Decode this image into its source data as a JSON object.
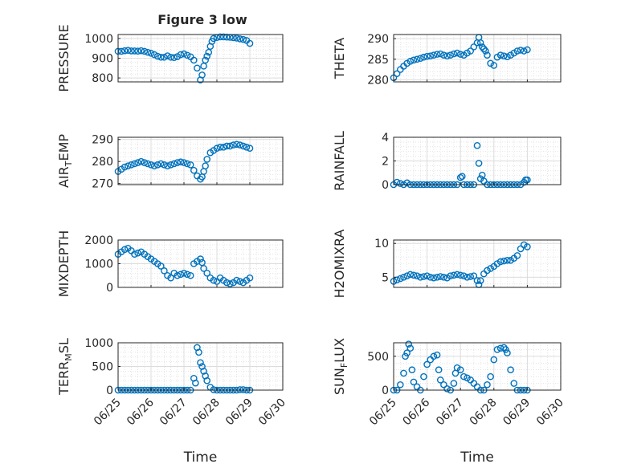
{
  "figure": {
    "title": "Figure 3 low",
    "marker_color": "#0072BD",
    "axis_color": "#262626",
    "x_ticks": [
      "06/25",
      "06/26",
      "06/27",
      "06/28",
      "06/29",
      "06/30"
    ],
    "x_label": "Time"
  },
  "chart_data": [
    {
      "id": "pressure",
      "type": "scatter",
      "ylabel": "PRESSURE",
      "ylabel_sub": "",
      "xlim": [
        0,
        5
      ],
      "ylim": [
        780,
        1020
      ],
      "yticks": [
        800,
        900,
        1000
      ],
      "grid": true,
      "x": [
        0.0,
        0.1,
        0.2,
        0.3,
        0.4,
        0.5,
        0.6,
        0.7,
        0.8,
        0.9,
        1.0,
        1.1,
        1.2,
        1.3,
        1.4,
        1.5,
        1.6,
        1.7,
        1.8,
        1.9,
        2.0,
        2.1,
        2.2,
        2.3,
        2.4,
        2.5,
        2.55,
        2.6,
        2.65,
        2.7,
        2.75,
        2.8,
        2.85,
        2.9,
        3.0,
        3.1,
        3.2,
        3.3,
        3.4,
        3.5,
        3.6,
        3.7,
        3.8,
        3.9,
        4.0
      ],
      "y": [
        935,
        935,
        938,
        940,
        937,
        937,
        936,
        938,
        935,
        930,
        925,
        918,
        910,
        905,
        905,
        912,
        905,
        903,
        908,
        918,
        922,
        915,
        907,
        890,
        850,
        790,
        815,
        860,
        890,
        910,
        930,
        960,
        985,
        1000,
        1005,
        1008,
        1008,
        1007,
        1006,
        1004,
        1002,
        998,
        995,
        990,
        975
      ]
    },
    {
      "id": "theta",
      "type": "scatter",
      "ylabel": "THETA",
      "ylabel_sub": "",
      "xlim": [
        0,
        5
      ],
      "ylim": [
        279.5,
        291
      ],
      "yticks": [
        280,
        285,
        290
      ],
      "grid": true,
      "x": [
        0.0,
        0.1,
        0.2,
        0.3,
        0.4,
        0.5,
        0.6,
        0.7,
        0.8,
        0.9,
        1.0,
        1.1,
        1.2,
        1.3,
        1.4,
        1.5,
        1.6,
        1.7,
        1.8,
        1.9,
        2.0,
        2.1,
        2.2,
        2.3,
        2.4,
        2.5,
        2.55,
        2.6,
        2.65,
        2.7,
        2.75,
        2.8,
        2.9,
        3.0,
        3.1,
        3.2,
        3.3,
        3.4,
        3.5,
        3.6,
        3.7,
        3.8,
        3.9,
        4.0
      ],
      "y": [
        280.5,
        281.5,
        282.5,
        283.3,
        284.0,
        284.5,
        284.8,
        285.0,
        285.2,
        285.5,
        285.7,
        285.8,
        286.0,
        286.2,
        286.3,
        286.0,
        285.8,
        286.0,
        286.3,
        286.5,
        286.2,
        286.0,
        286.5,
        287.0,
        288.0,
        289.0,
        290.3,
        289.0,
        288.0,
        287.5,
        287.0,
        286.0,
        284.0,
        283.5,
        285.5,
        286.0,
        285.8,
        285.6,
        286.0,
        286.5,
        287.0,
        287.2,
        287.0,
        287.3
      ]
    },
    {
      "id": "air-temp",
      "type": "scatter",
      "ylabel": "AIR",
      "ylabel_sub": "T",
      "ylabel_suffix": "EMP",
      "xlim": [
        0,
        5
      ],
      "ylim": [
        269.5,
        291
      ],
      "yticks": [
        270,
        280,
        290
      ],
      "grid": true,
      "x": [
        0.0,
        0.1,
        0.2,
        0.3,
        0.4,
        0.5,
        0.6,
        0.7,
        0.8,
        0.9,
        1.0,
        1.1,
        1.2,
        1.3,
        1.4,
        1.5,
        1.6,
        1.7,
        1.8,
        1.9,
        2.0,
        2.1,
        2.2,
        2.3,
        2.4,
        2.5,
        2.55,
        2.6,
        2.65,
        2.7,
        2.8,
        2.9,
        3.0,
        3.1,
        3.2,
        3.3,
        3.4,
        3.5,
        3.6,
        3.7,
        3.8,
        3.9,
        4.0
      ],
      "y": [
        275.5,
        276.5,
        277.5,
        278.0,
        278.5,
        279.0,
        279.5,
        280.0,
        279.5,
        279.0,
        278.5,
        278.0,
        278.5,
        279.0,
        278.5,
        278.0,
        278.5,
        279.0,
        279.5,
        279.8,
        279.5,
        279.0,
        278.5,
        276.0,
        273.5,
        272.0,
        273.0,
        275.5,
        278.0,
        281.0,
        284.0,
        285.0,
        286.0,
        286.5,
        286.5,
        287.0,
        287.0,
        287.5,
        287.8,
        287.5,
        287.0,
        286.5,
        286.0
      ]
    },
    {
      "id": "rainfall",
      "type": "scatter",
      "ylabel": "RAINFALL",
      "ylabel_sub": "",
      "xlim": [
        0,
        5
      ],
      "ylim": [
        0,
        4
      ],
      "yticks": [
        0,
        2,
        4
      ],
      "grid": true,
      "x": [
        0.0,
        0.1,
        0.2,
        0.3,
        0.4,
        0.5,
        0.6,
        0.7,
        0.8,
        0.9,
        1.0,
        1.1,
        1.2,
        1.3,
        1.4,
        1.5,
        1.6,
        1.7,
        1.8,
        1.9,
        2.0,
        2.05,
        2.1,
        2.2,
        2.3,
        2.4,
        2.5,
        2.55,
        2.6,
        2.65,
        2.7,
        2.8,
        2.9,
        3.0,
        3.1,
        3.2,
        3.3,
        3.4,
        3.5,
        3.6,
        3.7,
        3.8,
        3.9,
        3.95,
        4.0
      ],
      "y": [
        0,
        0.2,
        0.1,
        0,
        0.15,
        0,
        0,
        0,
        0,
        0,
        0,
        0,
        0,
        0,
        0,
        0,
        0,
        0,
        0,
        0,
        0.6,
        0.7,
        0,
        0,
        0,
        0,
        3.3,
        1.8,
        0.5,
        0.8,
        0.3,
        0,
        0,
        0,
        0,
        0,
        0,
        0,
        0,
        0,
        0,
        0,
        0.2,
        0.4,
        0.4
      ]
    },
    {
      "id": "mixdepth",
      "type": "scatter",
      "ylabel": "MIXDEPTH",
      "ylabel_sub": "",
      "xlim": [
        0,
        5
      ],
      "ylim": [
        0,
        2000
      ],
      "yticks": [
        0,
        1000,
        2000
      ],
      "grid": true,
      "x": [
        0.0,
        0.1,
        0.2,
        0.3,
        0.4,
        0.5,
        0.6,
        0.7,
        0.8,
        0.9,
        1.0,
        1.1,
        1.2,
        1.3,
        1.4,
        1.5,
        1.6,
        1.7,
        1.8,
        1.9,
        2.0,
        2.1,
        2.2,
        2.3,
        2.4,
        2.5,
        2.55,
        2.6,
        2.7,
        2.8,
        2.9,
        3.0,
        3.1,
        3.2,
        3.3,
        3.4,
        3.5,
        3.6,
        3.7,
        3.8,
        3.9,
        4.0
      ],
      "y": [
        1400,
        1500,
        1600,
        1650,
        1550,
        1400,
        1450,
        1500,
        1400,
        1300,
        1200,
        1100,
        1000,
        900,
        700,
        500,
        400,
        600,
        500,
        550,
        600,
        550,
        500,
        1000,
        1100,
        1200,
        1050,
        800,
        600,
        400,
        300,
        250,
        400,
        300,
        200,
        150,
        200,
        300,
        250,
        200,
        300,
        400
      ]
    },
    {
      "id": "h2omixra",
      "type": "scatter",
      "ylabel": "H2OMIXRA",
      "ylabel_sub": "",
      "xlim": [
        0,
        5
      ],
      "ylim": [
        3.5,
        10.5
      ],
      "yticks": [
        5,
        10
      ],
      "grid": true,
      "x": [
        0.0,
        0.1,
        0.2,
        0.3,
        0.4,
        0.5,
        0.6,
        0.7,
        0.8,
        0.9,
        1.0,
        1.1,
        1.2,
        1.3,
        1.4,
        1.5,
        1.6,
        1.7,
        1.8,
        1.9,
        2.0,
        2.1,
        2.2,
        2.3,
        2.4,
        2.5,
        2.55,
        2.6,
        2.7,
        2.8,
        2.9,
        3.0,
        3.1,
        3.2,
        3.3,
        3.4,
        3.5,
        3.6,
        3.7,
        3.8,
        3.9,
        4.0
      ],
      "y": [
        4.4,
        4.6,
        4.8,
        5.0,
        5.2,
        5.4,
        5.3,
        5.2,
        5.0,
        5.1,
        5.2,
        5.0,
        4.9,
        5.0,
        5.1,
        5.0,
        4.9,
        5.2,
        5.3,
        5.4,
        5.3,
        5.2,
        5.0,
        5.1,
        5.2,
        4.5,
        3.9,
        4.5,
        5.5,
        6.0,
        6.3,
        6.6,
        7.0,
        7.3,
        7.4,
        7.5,
        7.5,
        7.8,
        8.2,
        9.2,
        9.8,
        9.5
      ]
    },
    {
      "id": "terrmsl",
      "type": "scatter",
      "ylabel": "TERR",
      "ylabel_sub": "M",
      "ylabel_suffix": "SL",
      "xlim": [
        0,
        5
      ],
      "ylim": [
        0,
        1000
      ],
      "yticks": [
        0,
        500,
        1000
      ],
      "grid": true,
      "x": [
        0.0,
        0.1,
        0.2,
        0.3,
        0.4,
        0.5,
        0.6,
        0.7,
        0.8,
        0.9,
        1.0,
        1.1,
        1.2,
        1.3,
        1.4,
        1.5,
        1.6,
        1.7,
        1.8,
        1.9,
        2.0,
        2.1,
        2.2,
        2.3,
        2.35,
        2.4,
        2.45,
        2.5,
        2.55,
        2.6,
        2.65,
        2.7,
        2.8,
        2.9,
        3.0,
        3.1,
        3.2,
        3.3,
        3.4,
        3.5,
        3.6,
        3.7,
        3.8,
        3.9,
        4.0
      ],
      "y": [
        0,
        0,
        0,
        0,
        0,
        0,
        0,
        0,
        0,
        0,
        0,
        0,
        0,
        0,
        0,
        0,
        0,
        0,
        0,
        0,
        0,
        0,
        0,
        250,
        150,
        900,
        800,
        580,
        500,
        400,
        300,
        200,
        60,
        10,
        0,
        0,
        0,
        0,
        0,
        0,
        0,
        10,
        10,
        0,
        0
      ]
    },
    {
      "id": "sunflux",
      "type": "scatter",
      "ylabel": "SUN",
      "ylabel_sub": "F",
      "ylabel_suffix": "LUX",
      "xlim": [
        0,
        5
      ],
      "ylim": [
        0,
        700
      ],
      "yticks": [
        0,
        500
      ],
      "grid": true,
      "x": [
        0.0,
        0.1,
        0.2,
        0.3,
        0.35,
        0.4,
        0.45,
        0.5,
        0.55,
        0.6,
        0.7,
        0.8,
        0.9,
        1.0,
        1.1,
        1.2,
        1.3,
        1.35,
        1.4,
        1.5,
        1.6,
        1.7,
        1.8,
        1.85,
        1.9,
        2.0,
        2.1,
        2.2,
        2.3,
        2.4,
        2.5,
        2.6,
        2.7,
        2.8,
        2.9,
        3.0,
        3.1,
        3.2,
        3.3,
        3.35,
        3.4,
        3.5,
        3.6,
        3.7,
        3.8,
        3.9,
        4.0
      ],
      "y": [
        0,
        0,
        80,
        250,
        500,
        550,
        680,
        620,
        300,
        120,
        50,
        0,
        200,
        380,
        450,
        500,
        520,
        300,
        150,
        80,
        20,
        0,
        100,
        250,
        330,
        300,
        200,
        180,
        150,
        100,
        50,
        0,
        0,
        80,
        200,
        450,
        600,
        620,
        630,
        600,
        550,
        300,
        100,
        0,
        0,
        0,
        0
      ]
    }
  ]
}
